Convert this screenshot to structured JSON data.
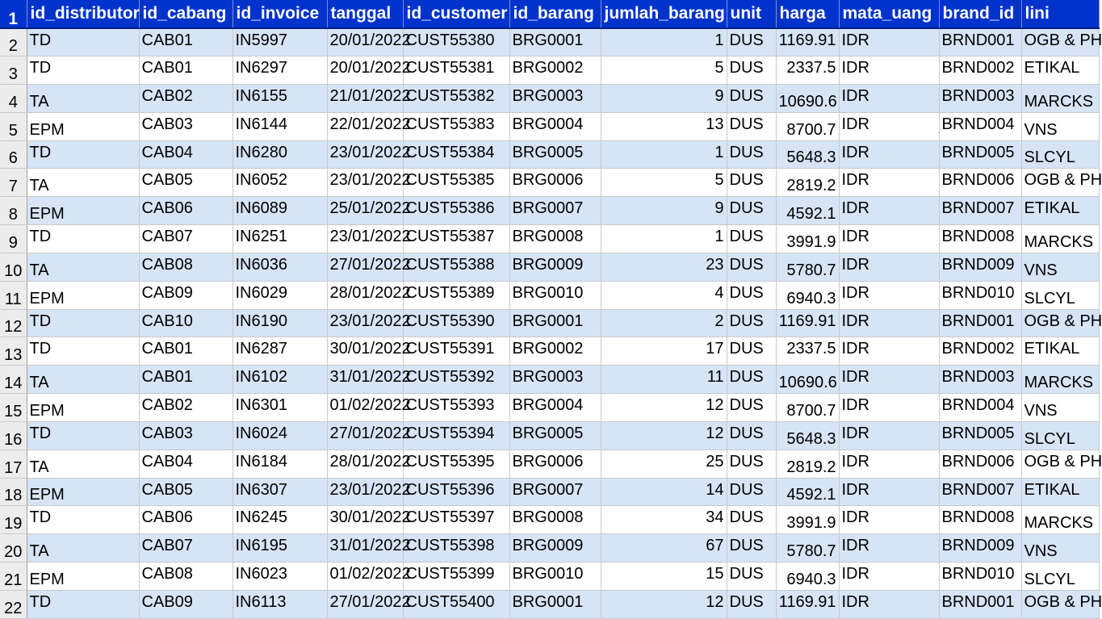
{
  "columns": [
    "id_distributor",
    "id_cabang",
    "id_invoice",
    "tanggal",
    "id_customer",
    "id_barang",
    "jumlah_barang",
    "unit",
    "harga",
    "mata_uang",
    "brand_id",
    "lini"
  ],
  "header_row_number": "1",
  "rows": [
    {
      "n": "2",
      "d": [
        "TD",
        "CAB01",
        "IN5997",
        "20/01/2022",
        "CUST55380",
        "BRG0001",
        "1",
        "DUS",
        "1169.91",
        "IDR",
        "BRND001",
        "OGB & PH"
      ]
    },
    {
      "n": "3",
      "d": [
        "TD",
        "CAB01",
        "IN6297",
        "20/01/2022",
        "CUST55381",
        "BRG0002",
        "5",
        "DUS",
        "2337.5",
        "IDR",
        "BRND002",
        "ETIKAL"
      ]
    },
    {
      "n": "4",
      "d": [
        "TA",
        "CAB02",
        "IN6155",
        "21/01/2022",
        "CUST55382",
        "BRG0003",
        "9",
        "DUS",
        "10690.6",
        "IDR",
        "BRND003",
        "MARCKS"
      ]
    },
    {
      "n": "5",
      "d": [
        "EPM",
        "CAB03",
        "IN6144",
        "22/01/2022",
        "CUST55383",
        "BRG0004",
        "13",
        "DUS",
        "8700.7",
        "IDR",
        "BRND004",
        "VNS"
      ]
    },
    {
      "n": "6",
      "d": [
        "TD",
        "CAB04",
        "IN6280",
        "23/01/2022",
        "CUST55384",
        "BRG0005",
        "1",
        "DUS",
        "5648.3",
        "IDR",
        "BRND005",
        "SLCYL"
      ]
    },
    {
      "n": "7",
      "d": [
        "TA",
        "CAB05",
        "IN6052",
        "23/01/2022",
        "CUST55385",
        "BRG0006",
        "5",
        "DUS",
        "2819.2",
        "IDR",
        "BRND006",
        "OGB & PH"
      ]
    },
    {
      "n": "8",
      "d": [
        "EPM",
        "CAB06",
        "IN6089",
        "25/01/2022",
        "CUST55386",
        "BRG0007",
        "9",
        "DUS",
        "4592.1",
        "IDR",
        "BRND007",
        "ETIKAL"
      ]
    },
    {
      "n": "9",
      "d": [
        "TD",
        "CAB07",
        "IN6251",
        "23/01/2022",
        "CUST55387",
        "BRG0008",
        "1",
        "DUS",
        "3991.9",
        "IDR",
        "BRND008",
        "MARCKS"
      ]
    },
    {
      "n": "10",
      "d": [
        "TA",
        "CAB08",
        "IN6036",
        "27/01/2022",
        "CUST55388",
        "BRG0009",
        "23",
        "DUS",
        "5780.7",
        "IDR",
        "BRND009",
        "VNS"
      ]
    },
    {
      "n": "11",
      "d": [
        "EPM",
        "CAB09",
        "IN6029",
        "28/01/2022",
        "CUST55389",
        "BRG0010",
        "4",
        "DUS",
        "6940.3",
        "IDR",
        "BRND010",
        "SLCYL"
      ]
    },
    {
      "n": "12",
      "d": [
        "TD",
        "CAB10",
        "IN6190",
        "23/01/2022",
        "CUST55390",
        "BRG0001",
        "2",
        "DUS",
        "1169.91",
        "IDR",
        "BRND001",
        "OGB & PH"
      ]
    },
    {
      "n": "13",
      "d": [
        "TD",
        "CAB01",
        "IN6287",
        "30/01/2022",
        "CUST55391",
        "BRG0002",
        "17",
        "DUS",
        "2337.5",
        "IDR",
        "BRND002",
        "ETIKAL"
      ]
    },
    {
      "n": "14",
      "d": [
        "TA",
        "CAB01",
        "IN6102",
        "31/01/2022",
        "CUST55392",
        "BRG0003",
        "11",
        "DUS",
        "10690.6",
        "IDR",
        "BRND003",
        "MARCKS"
      ]
    },
    {
      "n": "15",
      "d": [
        "EPM",
        "CAB02",
        "IN6301",
        "01/02/2022",
        "CUST55393",
        "BRG0004",
        "12",
        "DUS",
        "8700.7",
        "IDR",
        "BRND004",
        "VNS"
      ]
    },
    {
      "n": "16",
      "d": [
        "TD",
        "CAB03",
        "IN6024",
        "27/01/2022",
        "CUST55394",
        "BRG0005",
        "12",
        "DUS",
        "5648.3",
        "IDR",
        "BRND005",
        "SLCYL"
      ]
    },
    {
      "n": "17",
      "d": [
        "TA",
        "CAB04",
        "IN6184",
        "28/01/2022",
        "CUST55395",
        "BRG0006",
        "25",
        "DUS",
        "2819.2",
        "IDR",
        "BRND006",
        "OGB & PH"
      ]
    },
    {
      "n": "18",
      "d": [
        "EPM",
        "CAB05",
        "IN6307",
        "23/01/2022",
        "CUST55396",
        "BRG0007",
        "14",
        "DUS",
        "4592.1",
        "IDR",
        "BRND007",
        "ETIKAL"
      ]
    },
    {
      "n": "19",
      "d": [
        "TD",
        "CAB06",
        "IN6245",
        "30/01/2022",
        "CUST55397",
        "BRG0008",
        "34",
        "DUS",
        "3991.9",
        "IDR",
        "BRND008",
        "MARCKS"
      ]
    },
    {
      "n": "20",
      "d": [
        "TA",
        "CAB07",
        "IN6195",
        "31/01/2022",
        "CUST55398",
        "BRG0009",
        "67",
        "DUS",
        "5780.7",
        "IDR",
        "BRND009",
        "VNS"
      ]
    },
    {
      "n": "21",
      "d": [
        "EPM",
        "CAB08",
        "IN6023",
        "01/02/2022",
        "CUST55399",
        "BRG0010",
        "15",
        "DUS",
        "6940.3",
        "IDR",
        "BRND010",
        "SLCYL"
      ]
    },
    {
      "n": "22",
      "d": [
        "TD",
        "CAB09",
        "IN6113",
        "27/01/2022",
        "CUST55400",
        "BRG0001",
        "12",
        "DUS",
        "1169.91",
        "IDR",
        "BRND001",
        "OGB & PH"
      ]
    }
  ],
  "colors": {
    "header_bg": "#0033cc",
    "header_text": "#ffffff",
    "band": "#d7e4f6",
    "rownum_bg": "#ececec"
  }
}
